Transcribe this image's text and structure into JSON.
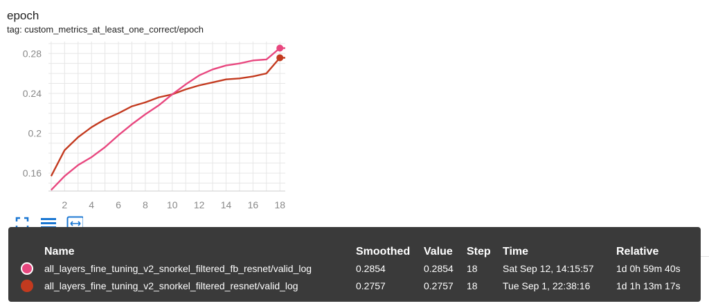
{
  "header": {
    "title": "epoch",
    "subtitle": "tag: custom_metrics_at_least_one_correct/epoch"
  },
  "toolbar": {
    "icons": [
      "fullscreen-icon",
      "data-selection-icon",
      "fit-domain-icon"
    ]
  },
  "colors": {
    "series_fb_resnet": "#e8477f",
    "series_resnet": "#c33a1f",
    "tooltip_bg": "#3a3a3a",
    "grid": "#e0e0e0",
    "tick_text": "#888888"
  },
  "chart_data": {
    "type": "line",
    "title": "",
    "xlabel": "",
    "ylabel": "",
    "xlim": [
      0.8,
      18.4
    ],
    "ylim": [
      0.142,
      0.292
    ],
    "x_ticks": [
      2,
      4,
      6,
      8,
      10,
      12,
      14,
      16,
      18
    ],
    "y_ticks": [
      0.16,
      0.2,
      0.24,
      0.28
    ],
    "y_tick_labels": [
      "0.16",
      "0.2",
      "0.24",
      "0.28"
    ],
    "grid": true,
    "x": [
      1,
      2,
      3,
      4,
      5,
      6,
      7,
      8,
      9,
      10,
      11,
      12,
      13,
      14,
      15,
      16,
      17,
      18
    ],
    "series": [
      {
        "name": "all_layers_fine_tuning_v2_snorkel_filtered_fb_resnet/valid_log",
        "color": "#e8477f",
        "values": [
          0.143,
          0.157,
          0.168,
          0.176,
          0.186,
          0.198,
          0.209,
          0.219,
          0.228,
          0.239,
          0.249,
          0.258,
          0.264,
          0.268,
          0.27,
          0.273,
          0.274,
          0.2854
        ]
      },
      {
        "name": "all_layers_fine_tuning_v2_snorkel_filtered_resnet/valid_log",
        "color": "#c33a1f",
        "values": [
          0.157,
          0.183,
          0.196,
          0.206,
          0.214,
          0.22,
          0.227,
          0.231,
          0.236,
          0.239,
          0.244,
          0.248,
          0.251,
          0.254,
          0.255,
          0.257,
          0.26,
          0.2757
        ]
      }
    ]
  },
  "tooltip": {
    "headers": {
      "name": "Name",
      "smoothed": "Smoothed",
      "value": "Value",
      "step": "Step",
      "time": "Time",
      "relative": "Relative"
    },
    "rows": [
      {
        "name": "all_layers_fine_tuning_v2_snorkel_filtered_fb_resnet/valid_log",
        "smoothed": "0.2854",
        "value": "0.2854",
        "step": "18",
        "time": "Sat Sep 12, 14:15:57",
        "relative": "1d 0h 59m 40s",
        "color": "#e8477f"
      },
      {
        "name": "all_layers_fine_tuning_v2_snorkel_filtered_resnet/valid_log",
        "smoothed": "0.2757",
        "value": "0.2757",
        "step": "18",
        "time": "Tue Sep 1, 22:38:16",
        "relative": "1d 1h 13m 17s",
        "color": "#c33a1f"
      }
    ]
  }
}
